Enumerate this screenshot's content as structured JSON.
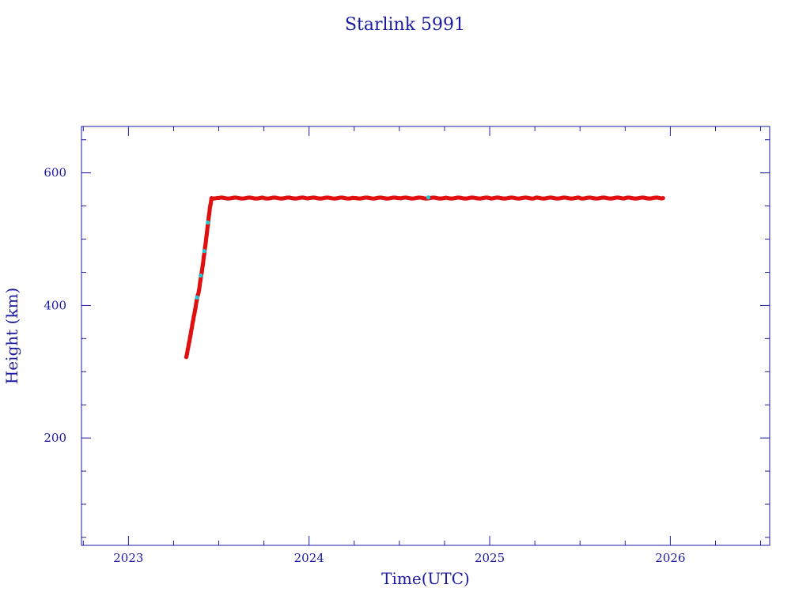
{
  "chart_data": {
    "type": "scatter",
    "title": "Starlink 5991",
    "xlabel": "Time(UTC)",
    "ylabel": "Height (km)",
    "xlim": [
      2022.74,
      2026.55
    ],
    "ylim": [
      38,
      670
    ],
    "x_ticks": [
      "2023",
      "2024",
      "2025",
      "2026"
    ],
    "y_ticks": [
      "200",
      "400",
      "600"
    ],
    "colors": {
      "axis": "#1a1aa0",
      "points": "#e01010",
      "alt_points": "#20c8d8"
    },
    "series": [
      {
        "values": [
          [
            2023.32,
            322
          ],
          [
            2023.33,
            335
          ],
          [
            2023.34,
            350
          ],
          [
            2023.35,
            365
          ],
          [
            2023.36,
            380
          ],
          [
            2023.37,
            395
          ],
          [
            2023.38,
            410
          ],
          [
            2023.39,
            422
          ],
          [
            2023.4,
            440
          ],
          [
            2023.41,
            458
          ],
          [
            2023.42,
            478
          ],
          [
            2023.43,
            500
          ],
          [
            2023.44,
            522
          ],
          [
            2023.45,
            545
          ],
          [
            2023.46,
            562
          ],
          [
            2023.5,
            562
          ],
          [
            2023.75,
            562
          ],
          [
            2024.0,
            562
          ],
          [
            2024.25,
            562
          ],
          [
            2024.5,
            562
          ],
          [
            2024.75,
            562
          ],
          [
            2025.0,
            562
          ],
          [
            2025.25,
            562
          ],
          [
            2025.5,
            562
          ],
          [
            2025.75,
            562
          ],
          [
            2025.96,
            562
          ]
        ]
      },
      {
        "values": [
          [
            2023.38,
            412
          ],
          [
            2023.4,
            445
          ],
          [
            2023.42,
            482
          ],
          [
            2023.44,
            525
          ],
          [
            2024.66,
            563
          ]
        ]
      }
    ]
  }
}
